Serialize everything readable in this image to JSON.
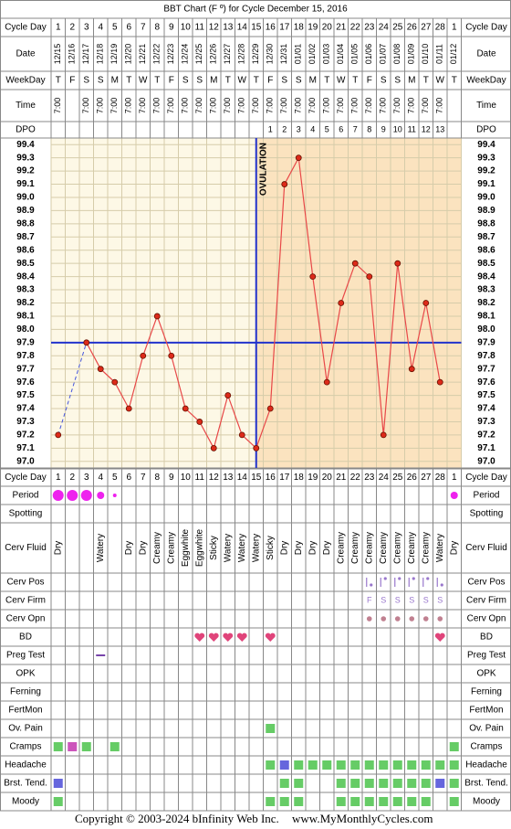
{
  "title": "BBT Chart (F º) for Cycle December 15, 2016",
  "labels": {
    "cycle_day": "Cycle Day",
    "date": "Date",
    "weekday": "WeekDay",
    "time": "Time",
    "dpo": "DPO"
  },
  "dates": [
    "12/15",
    "12/16",
    "12/17",
    "12/18",
    "12/19",
    "12/20",
    "12/21",
    "12/22",
    "12/23",
    "12/24",
    "12/25",
    "12/26",
    "12/27",
    "12/28",
    "12/29",
    "12/30",
    "12/31",
    "01/01",
    "01/02",
    "01/03",
    "01/04",
    "01/05",
    "01/06",
    "01/07",
    "01/08",
    "01/09",
    "01/10",
    "01/11",
    "01/12"
  ],
  "weekdays": [
    "T",
    "F",
    "S",
    "S",
    "M",
    "T",
    "W",
    "T",
    "F",
    "S",
    "S",
    "M",
    "T",
    "W",
    "T",
    "F",
    "S",
    "S",
    "M",
    "T",
    "W",
    "T",
    "F",
    "S",
    "S",
    "M",
    "T",
    "W",
    "T"
  ],
  "times": [
    "7:00",
    null,
    "7:00",
    "7:00",
    "7:00",
    "7:00",
    "7:00",
    "7:00",
    "7:00",
    "7:00",
    "7:00",
    "7:00",
    "7:00",
    "7:00",
    "7:00",
    "7:00",
    "7:00",
    "7:00",
    "7:00",
    "7:00",
    "7:00",
    "7:00",
    "7:00",
    "7:00",
    "7:00",
    "7:00",
    "7:00",
    "7:00",
    null
  ],
  "dpo": [
    null,
    null,
    null,
    null,
    null,
    null,
    null,
    null,
    null,
    null,
    null,
    null,
    null,
    null,
    null,
    1,
    2,
    3,
    4,
    5,
    6,
    7,
    8,
    9,
    10,
    11,
    12,
    13,
    null
  ],
  "chart_data": {
    "type": "line",
    "categories": [
      1,
      2,
      3,
      4,
      5,
      6,
      7,
      8,
      9,
      10,
      11,
      12,
      13,
      14,
      15,
      16,
      17,
      18,
      19,
      20,
      21,
      22,
      23,
      24,
      25,
      26,
      27,
      28,
      1
    ],
    "series": [
      {
        "color": "#e84848",
        "values": [
          97.2,
          null,
          97.9,
          97.7,
          97.6,
          97.4,
          97.8,
          98.1,
          97.8,
          97.4,
          97.3,
          97.1,
          97.5,
          97.2,
          97.1,
          97.4,
          99.1,
          99.3,
          98.4,
          97.6,
          98.2,
          98.5,
          98.4,
          97.2,
          98.5,
          97.7,
          98.2,
          97.6,
          null
        ]
      }
    ],
    "ylim": [
      96.95,
      99.45
    ],
    "yticks": [
      99.4,
      99.3,
      99.2,
      99.1,
      {
        "value": 99,
        "label": "99.0"
      },
      98.9,
      98.8,
      98.7,
      98.6,
      98.5,
      98.4,
      98.3,
      98.2,
      98.1,
      {
        "value": 98,
        "label": "98.0"
      },
      97.9,
      97.8,
      97.7,
      97.6,
      97.5,
      97.4,
      97.3,
      97.2,
      97.1,
      {
        "value": 97,
        "label": "97.0"
      }
    ],
    "grid": true,
    "coverline": 97.9,
    "ovulation_day": 15,
    "annotation": "OVULATION"
  },
  "rows": {
    "period": {
      "label": "Period",
      "cells": [
        "heavy",
        "heavy",
        "heavy",
        "medium",
        "light",
        null,
        null,
        null,
        null,
        null,
        null,
        null,
        null,
        null,
        null,
        null,
        null,
        null,
        null,
        null,
        null,
        null,
        null,
        null,
        null,
        null,
        null,
        null,
        "medium"
      ]
    },
    "spotting": {
      "label": "Spotting"
    },
    "cerv_fluid": {
      "label": "Cerv Fluid",
      "cells": [
        "Dry",
        null,
        null,
        "Watery",
        null,
        "Dry",
        "Dry",
        "Creamy",
        "Creamy",
        "Eggwhite",
        "Eggwhite",
        "Sticky",
        "Watery",
        "Watery",
        "Watery",
        "Sticky",
        "Dry",
        "Dry",
        "Dry",
        "Dry",
        "Creamy",
        "Creamy",
        "Creamy",
        "Creamy",
        "Creamy",
        "Creamy",
        "Creamy",
        "Watery",
        "Dry"
      ]
    },
    "cerv_pos": {
      "label": "Cerv Pos",
      "cells": [
        null,
        null,
        null,
        null,
        null,
        null,
        null,
        null,
        null,
        null,
        null,
        null,
        null,
        null,
        null,
        null,
        null,
        null,
        null,
        null,
        null,
        null,
        "low",
        "high",
        "high",
        "high",
        "high",
        "low",
        null
      ]
    },
    "cerv_firm": {
      "label": "Cerv Firm",
      "cells": [
        null,
        null,
        null,
        null,
        null,
        null,
        null,
        null,
        null,
        null,
        null,
        null,
        null,
        null,
        null,
        null,
        null,
        null,
        null,
        null,
        null,
        null,
        "F",
        "S",
        "S",
        "S",
        "S",
        "S",
        null
      ]
    },
    "cerv_opn": {
      "label": "Cerv Opn",
      "cells": [
        null,
        null,
        null,
        null,
        null,
        null,
        null,
        null,
        null,
        null,
        null,
        null,
        null,
        null,
        null,
        null,
        null,
        null,
        null,
        null,
        null,
        null,
        true,
        true,
        true,
        true,
        true,
        true,
        null
      ]
    },
    "bd": {
      "label": "BD",
      "cells": [
        null,
        null,
        null,
        null,
        null,
        null,
        null,
        null,
        null,
        null,
        true,
        true,
        true,
        true,
        null,
        true,
        null,
        null,
        null,
        null,
        null,
        null,
        null,
        null,
        null,
        null,
        null,
        true,
        null
      ]
    },
    "preg_test": {
      "label": "Preg Test",
      "cells": [
        null,
        null,
        null,
        "negative",
        null,
        null,
        null,
        null,
        null,
        null,
        null,
        null,
        null,
        null,
        null,
        null,
        null,
        null,
        null,
        null,
        null,
        null,
        null,
        null,
        null,
        null,
        null,
        null,
        null
      ]
    },
    "opk": {
      "label": "OPK"
    },
    "ferning": {
      "label": "Ferning"
    },
    "fertmon": {
      "label": "FertMon"
    },
    "ov_pain": {
      "label": "Ov. Pain",
      "cells": [
        null,
        null,
        null,
        null,
        null,
        null,
        null,
        null,
        null,
        null,
        null,
        null,
        null,
        null,
        null,
        "#66cc66",
        null,
        null,
        null,
        null,
        null,
        null,
        null,
        null,
        null,
        null,
        null,
        null,
        null
      ]
    },
    "cramps": {
      "label": "Cramps",
      "cells": [
        "#66cc66",
        "#cc55bb",
        "#66cc66",
        null,
        "#66cc66",
        null,
        null,
        null,
        null,
        null,
        null,
        null,
        null,
        null,
        null,
        null,
        null,
        null,
        null,
        null,
        null,
        null,
        null,
        null,
        null,
        null,
        null,
        null,
        "#66cc66"
      ]
    },
    "headache": {
      "label": "Headache",
      "cells": [
        null,
        null,
        null,
        null,
        null,
        null,
        null,
        null,
        null,
        null,
        null,
        null,
        null,
        null,
        null,
        "#66cc66",
        "#6666dd",
        "#66cc66",
        "#66cc66",
        "#66cc66",
        "#66cc66",
        "#66cc66",
        "#66cc66",
        "#66cc66",
        "#66cc66",
        "#66cc66",
        "#66cc66",
        "#66cc66",
        "#66cc66"
      ]
    },
    "brst_tend": {
      "label": "Brst. Tend.",
      "cells": [
        "#6666dd",
        null,
        null,
        null,
        null,
        null,
        null,
        null,
        null,
        null,
        null,
        null,
        null,
        null,
        null,
        null,
        "#66cc66",
        "#66cc66",
        null,
        null,
        "#66cc66",
        "#66cc66",
        "#66cc66",
        "#66cc66",
        "#66cc66",
        "#66cc66",
        "#66cc66",
        "#6666dd",
        "#66cc66"
      ]
    },
    "moody": {
      "label": "Moody",
      "cells": [
        "#66cc66",
        null,
        null,
        null,
        null,
        null,
        null,
        null,
        null,
        null,
        null,
        null,
        null,
        null,
        null,
        "#66cc66",
        "#66cc66",
        "#66cc66",
        null,
        null,
        "#66cc66",
        "#66cc66",
        "#66cc66",
        "#66cc66",
        "#66cc66",
        "#66cc66",
        "#66cc66",
        null,
        "#66cc66"
      ]
    }
  },
  "footer": {
    "copyright": "Copyright © 2003-2024 bInfinity Web Inc.",
    "site": "www.MyMonthlyCycles.com"
  }
}
